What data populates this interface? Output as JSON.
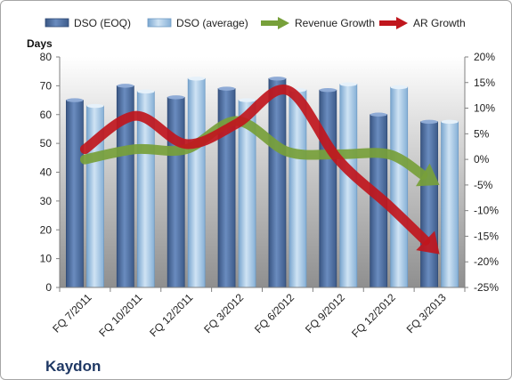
{
  "chart_data": {
    "type": "bar",
    "company": "Kaydon",
    "ylabel": "Days",
    "ylim": [
      0,
      80
    ],
    "y_ticks": [
      0,
      10,
      20,
      30,
      40,
      50,
      60,
      70,
      80
    ],
    "y2lim": [
      -25,
      20
    ],
    "y2_ticks": [
      -25,
      -20,
      -15,
      -10,
      -5,
      0,
      5,
      10,
      15,
      20
    ],
    "y2_tick_labels": [
      "-25%",
      "-20%",
      "-15%",
      "-10%",
      "-5%",
      "0%",
      "5%",
      "10%",
      "15%",
      "20%"
    ],
    "categories": [
      "FQ 7/2011",
      "FQ 10/2011",
      "FQ 12/2011",
      "FQ 3/2012",
      "FQ 6/2012",
      "FQ 9/2012",
      "FQ 12/2012",
      "FQ 3/2013"
    ],
    "legend_position": "top",
    "grid": false,
    "series": [
      {
        "name": "DSO (EOQ)",
        "kind": "bar",
        "axis": "left",
        "color": "#4f6f9f",
        "values": [
          65,
          70,
          66,
          69,
          72.5,
          68.5,
          60,
          57.5
        ]
      },
      {
        "name": "DSO (average)",
        "kind": "bar",
        "axis": "left",
        "color": "#9cc3e4",
        "values": [
          63,
          68,
          72.5,
          65,
          68.5,
          70.5,
          69.5,
          57.5
        ]
      },
      {
        "name": "Revenue Growth",
        "kind": "arrow",
        "axis": "right",
        "color": "#77a03a",
        "values": [
          0,
          2,
          2,
          7.5,
          1.5,
          1,
          1,
          -5
        ]
      },
      {
        "name": "AR Growth",
        "kind": "arrow",
        "axis": "right",
        "color": "#c0161d",
        "values": [
          2,
          8.5,
          3,
          7,
          13.5,
          0,
          -9,
          -18.5
        ]
      }
    ]
  }
}
